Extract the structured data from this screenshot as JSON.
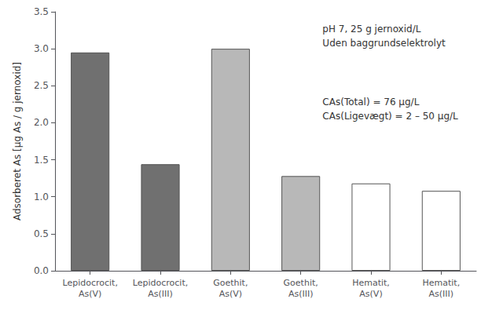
{
  "chart_data": {
    "type": "bar",
    "categories": [
      "Lepidocrocit,\nAs(V)",
      "Lepidocrocit,\nAs(III)",
      "Goethit,\nAs(V)",
      "Goethit,\nAs(III)",
      "Hematit,\nAs(V)",
      "Hematit,\nAs(III)"
    ],
    "values": [
      2.95,
      1.44,
      3.0,
      1.28,
      1.18,
      1.08
    ],
    "colors": [
      "#707070",
      "#707070",
      "#b8b8b8",
      "#b8b8b8",
      "#ffffff",
      "#ffffff"
    ],
    "ylabel": "Adsorberet As [µg As / g jernoxid]",
    "ylim": [
      0.0,
      3.5
    ],
    "yticks": [
      {
        "value": 0.0,
        "label": "0.0"
      },
      0.5,
      {
        "value": 1.0,
        "label": "1.0"
      },
      1.5,
      {
        "value": 2.0,
        "label": "2.0"
      },
      2.5,
      {
        "value": 3.0,
        "label": "3.0"
      },
      3.5
    ],
    "annotations": [
      "pH 7, 25 g jernoxid/L\nUden baggrundselektrolyt",
      "CAs(Total) = 76 µg/L\nCAs(Ligevægt) = 2 – 50 µg/L"
    ],
    "grid": false
  }
}
